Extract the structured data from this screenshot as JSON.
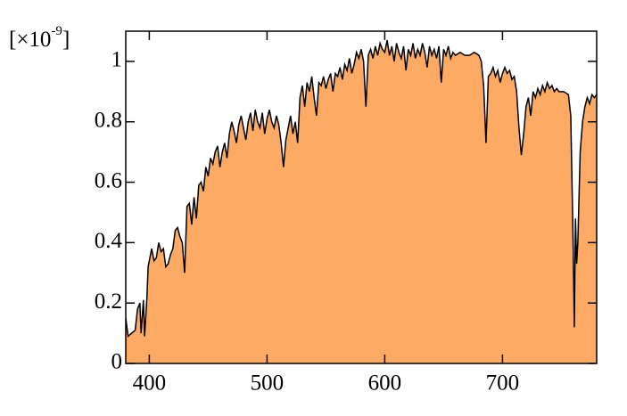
{
  "chart_data": {
    "type": "area",
    "y_scale_label": {
      "open": "[×10",
      "exponent": "-9",
      "close": "]"
    },
    "x": [
      380,
      382,
      385,
      388,
      390,
      392,
      393,
      395,
      396,
      398,
      399,
      402,
      404,
      406,
      408,
      410,
      412,
      414,
      416,
      418,
      420,
      422,
      424,
      426,
      428,
      430,
      432,
      434,
      436,
      438,
      440,
      442,
      444,
      446,
      448,
      450,
      452,
      454,
      456,
      458,
      460,
      462,
      464,
      466,
      468,
      470,
      472,
      474,
      476,
      478,
      480,
      482,
      484,
      486,
      488,
      490,
      492,
      494,
      496,
      498,
      500,
      502,
      504,
      506,
      508,
      510,
      512,
      514,
      516,
      518,
      520,
      522,
      524,
      526,
      528,
      530,
      532,
      534,
      536,
      538,
      540,
      542,
      544,
      546,
      548,
      550,
      552,
      554,
      556,
      558,
      560,
      562,
      564,
      566,
      568,
      570,
      572,
      574,
      576,
      578,
      580,
      582,
      584,
      586,
      588,
      590,
      592,
      594,
      596,
      598,
      600,
      602,
      604,
      606,
      608,
      610,
      612,
      614,
      616,
      618,
      620,
      622,
      624,
      626,
      628,
      630,
      632,
      634,
      636,
      638,
      640,
      642,
      644,
      646,
      648,
      650,
      652,
      654,
      656,
      658,
      660,
      664,
      668,
      672,
      676,
      680,
      682,
      684,
      686,
      688,
      690,
      692,
      694,
      696,
      698,
      700,
      702,
      704,
      706,
      708,
      710,
      712,
      714,
      716,
      718,
      720,
      722,
      724,
      726,
      728,
      730,
      732,
      734,
      736,
      738,
      740,
      742,
      744,
      746,
      748,
      752,
      756,
      758,
      760,
      761,
      762,
      763,
      764,
      766,
      768,
      770,
      772,
      774,
      776,
      778,
      780
    ],
    "values": [
      0.15,
      0.09,
      0.1,
      0.11,
      0.18,
      0.2,
      0.1,
      0.21,
      0.09,
      0.22,
      0.32,
      0.38,
      0.34,
      0.35,
      0.4,
      0.37,
      0.38,
      0.32,
      0.33,
      0.36,
      0.38,
      0.44,
      0.45,
      0.42,
      0.4,
      0.3,
      0.52,
      0.53,
      0.46,
      0.55,
      0.48,
      0.59,
      0.6,
      0.57,
      0.65,
      0.62,
      0.68,
      0.66,
      0.7,
      0.72,
      0.65,
      0.7,
      0.73,
      0.68,
      0.76,
      0.8,
      0.77,
      0.73,
      0.79,
      0.82,
      0.78,
      0.74,
      0.8,
      0.83,
      0.77,
      0.84,
      0.8,
      0.78,
      0.83,
      0.76,
      0.81,
      0.84,
      0.8,
      0.78,
      0.82,
      0.79,
      0.73,
      0.65,
      0.74,
      0.78,
      0.82,
      0.76,
      0.8,
      0.73,
      0.88,
      0.92,
      0.85,
      0.93,
      0.9,
      0.95,
      0.88,
      0.82,
      0.93,
      0.92,
      0.95,
      0.91,
      0.94,
      0.96,
      0.9,
      0.96,
      0.95,
      0.98,
      0.94,
      0.99,
      0.97,
      1.01,
      0.96,
      0.99,
      1.03,
      1.01,
      1.04,
      1.0,
      0.85,
      1.02,
      1.04,
      1.01,
      1.05,
      1.02,
      1.06,
      1.04,
      1.03,
      1.07,
      1.02,
      1.05,
      1.0,
      1.06,
      1.03,
      1.01,
      1.05,
      0.97,
      1.04,
      1.02,
      1.06,
      1.01,
      1.04,
      1.02,
      1.06,
      1.03,
      0.98,
      1.05,
      1.02,
      1.04,
      1.01,
      1.05,
      0.93,
      1.04,
      1.02,
      1.05,
      1.01,
      1.03,
      1.02,
      1.03,
      1.02,
      1.02,
      1.03,
      1.02,
      1.0,
      0.92,
      0.73,
      0.95,
      0.96,
      0.98,
      0.95,
      0.97,
      0.93,
      0.96,
      0.98,
      0.96,
      0.97,
      0.94,
      0.95,
      0.9,
      0.78,
      0.69,
      0.76,
      0.85,
      0.88,
      0.82,
      0.9,
      0.88,
      0.91,
      0.89,
      0.92,
      0.9,
      0.93,
      0.91,
      0.92,
      0.9,
      0.91,
      0.9,
      0.9,
      0.89,
      0.82,
      0.4,
      0.12,
      0.48,
      0.33,
      0.4,
      0.7,
      0.8,
      0.85,
      0.88,
      0.86,
      0.89,
      0.88,
      0.89
    ],
    "color": "#fdab64",
    "line_color": "#000000",
    "xlim": [
      380,
      780
    ],
    "ylim": [
      0,
      1.1
    ],
    "xticks": [
      400,
      500,
      600,
      700
    ],
    "yticks": [
      0,
      0.2,
      0.4,
      0.6,
      0.8,
      1
    ]
  }
}
